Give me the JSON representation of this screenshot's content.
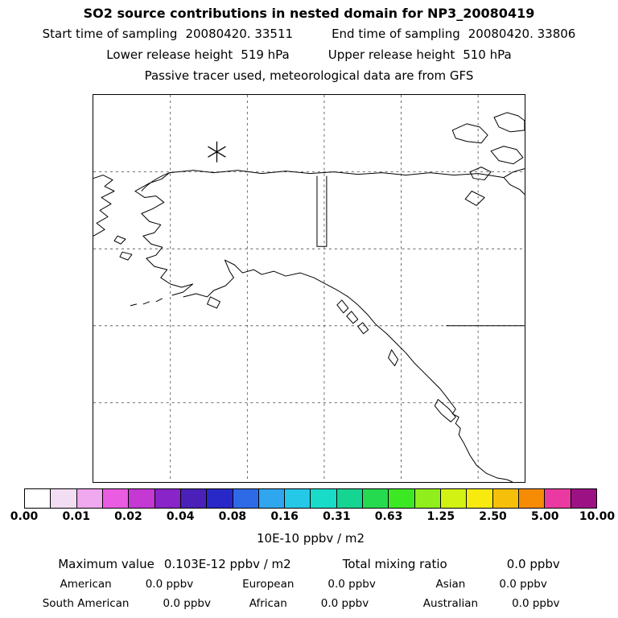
{
  "header": {
    "title": "SO2 source contributions in nested domain for NP3_20080419",
    "sampling": {
      "start_label": "Start time of sampling",
      "start_value": "20080420. 33511",
      "end_label": "End time of sampling",
      "end_value": "20080420. 33806"
    },
    "release": {
      "lower_label": "Lower release height",
      "lower_value": "519 hPa",
      "upper_label": "Upper release height",
      "upper_value": "510 hPa"
    },
    "note": "Passive tracer used, meteorological data are from GFS"
  },
  "map": {
    "marker": "source-location-asterisk",
    "region": "Alaska / northwest North America with lat-lon grid, nested domain outline and coastlines"
  },
  "colorbar": {
    "ticks": [
      "0.00",
      "0.01",
      "0.02",
      "0.04",
      "0.08",
      "0.16",
      "0.31",
      "0.63",
      "1.25",
      "2.50",
      "5.00",
      "10.00"
    ],
    "unit_label": "10E-10 ppbv / m2",
    "colors": [
      "#ffffff",
      "#f3ddf3",
      "#f0a8ee",
      "#ea5ce2",
      "#c438d4",
      "#8824c8",
      "#4a20b8",
      "#2828c8",
      "#2f6ae6",
      "#2fa6ee",
      "#26c8e8",
      "#18dcc8",
      "#16d492",
      "#26da50",
      "#3ce824",
      "#90ee1c",
      "#d2f214",
      "#f6ea0e",
      "#f6c00a",
      "#f68c06",
      "#ea3aa2",
      "#9c1284"
    ]
  },
  "stats": {
    "maximum_label": "Maximum value",
    "maximum_value": "0.103E-12 ppbv / m2",
    "total_label": "Total mixing ratio",
    "total_value": "0.0 ppbv",
    "regions": [
      {
        "label": "American",
        "value": "0.0 ppbv"
      },
      {
        "label": "European",
        "value": "0.0 ppbv"
      },
      {
        "label": "Asian",
        "value": "0.0 ppbv"
      },
      {
        "label": "South American",
        "value": "0.0 ppbv"
      },
      {
        "label": "African",
        "value": "0.0 ppbv"
      },
      {
        "label": "Australian",
        "value": "0.0 ppbv"
      }
    ]
  },
  "chart_data": {
    "type": "heatmap",
    "title": "SO2 source contributions in nested domain for NP3_20080419",
    "colorbar_ticks": [
      0.0,
      0.01,
      0.02,
      0.04,
      0.08,
      0.16,
      0.31,
      0.63,
      1.25,
      2.5,
      5.0,
      10.0
    ],
    "colorbar_unit": "10E-10 ppbv / m2",
    "maximum_value": "0.103E-12 ppbv / m2",
    "total_mixing_ratio_ppbv": 0.0,
    "region_contributions_ppbv": {
      "American": 0.0,
      "European": 0.0,
      "Asian": 0.0,
      "South American": 0.0,
      "African": 0.0,
      "Australian": 0.0
    },
    "legend_position": "bottom",
    "grid": true,
    "notes": "Geographic concentration map (Alaska / NW North America); field is effectively zero, only source marker shown"
  }
}
